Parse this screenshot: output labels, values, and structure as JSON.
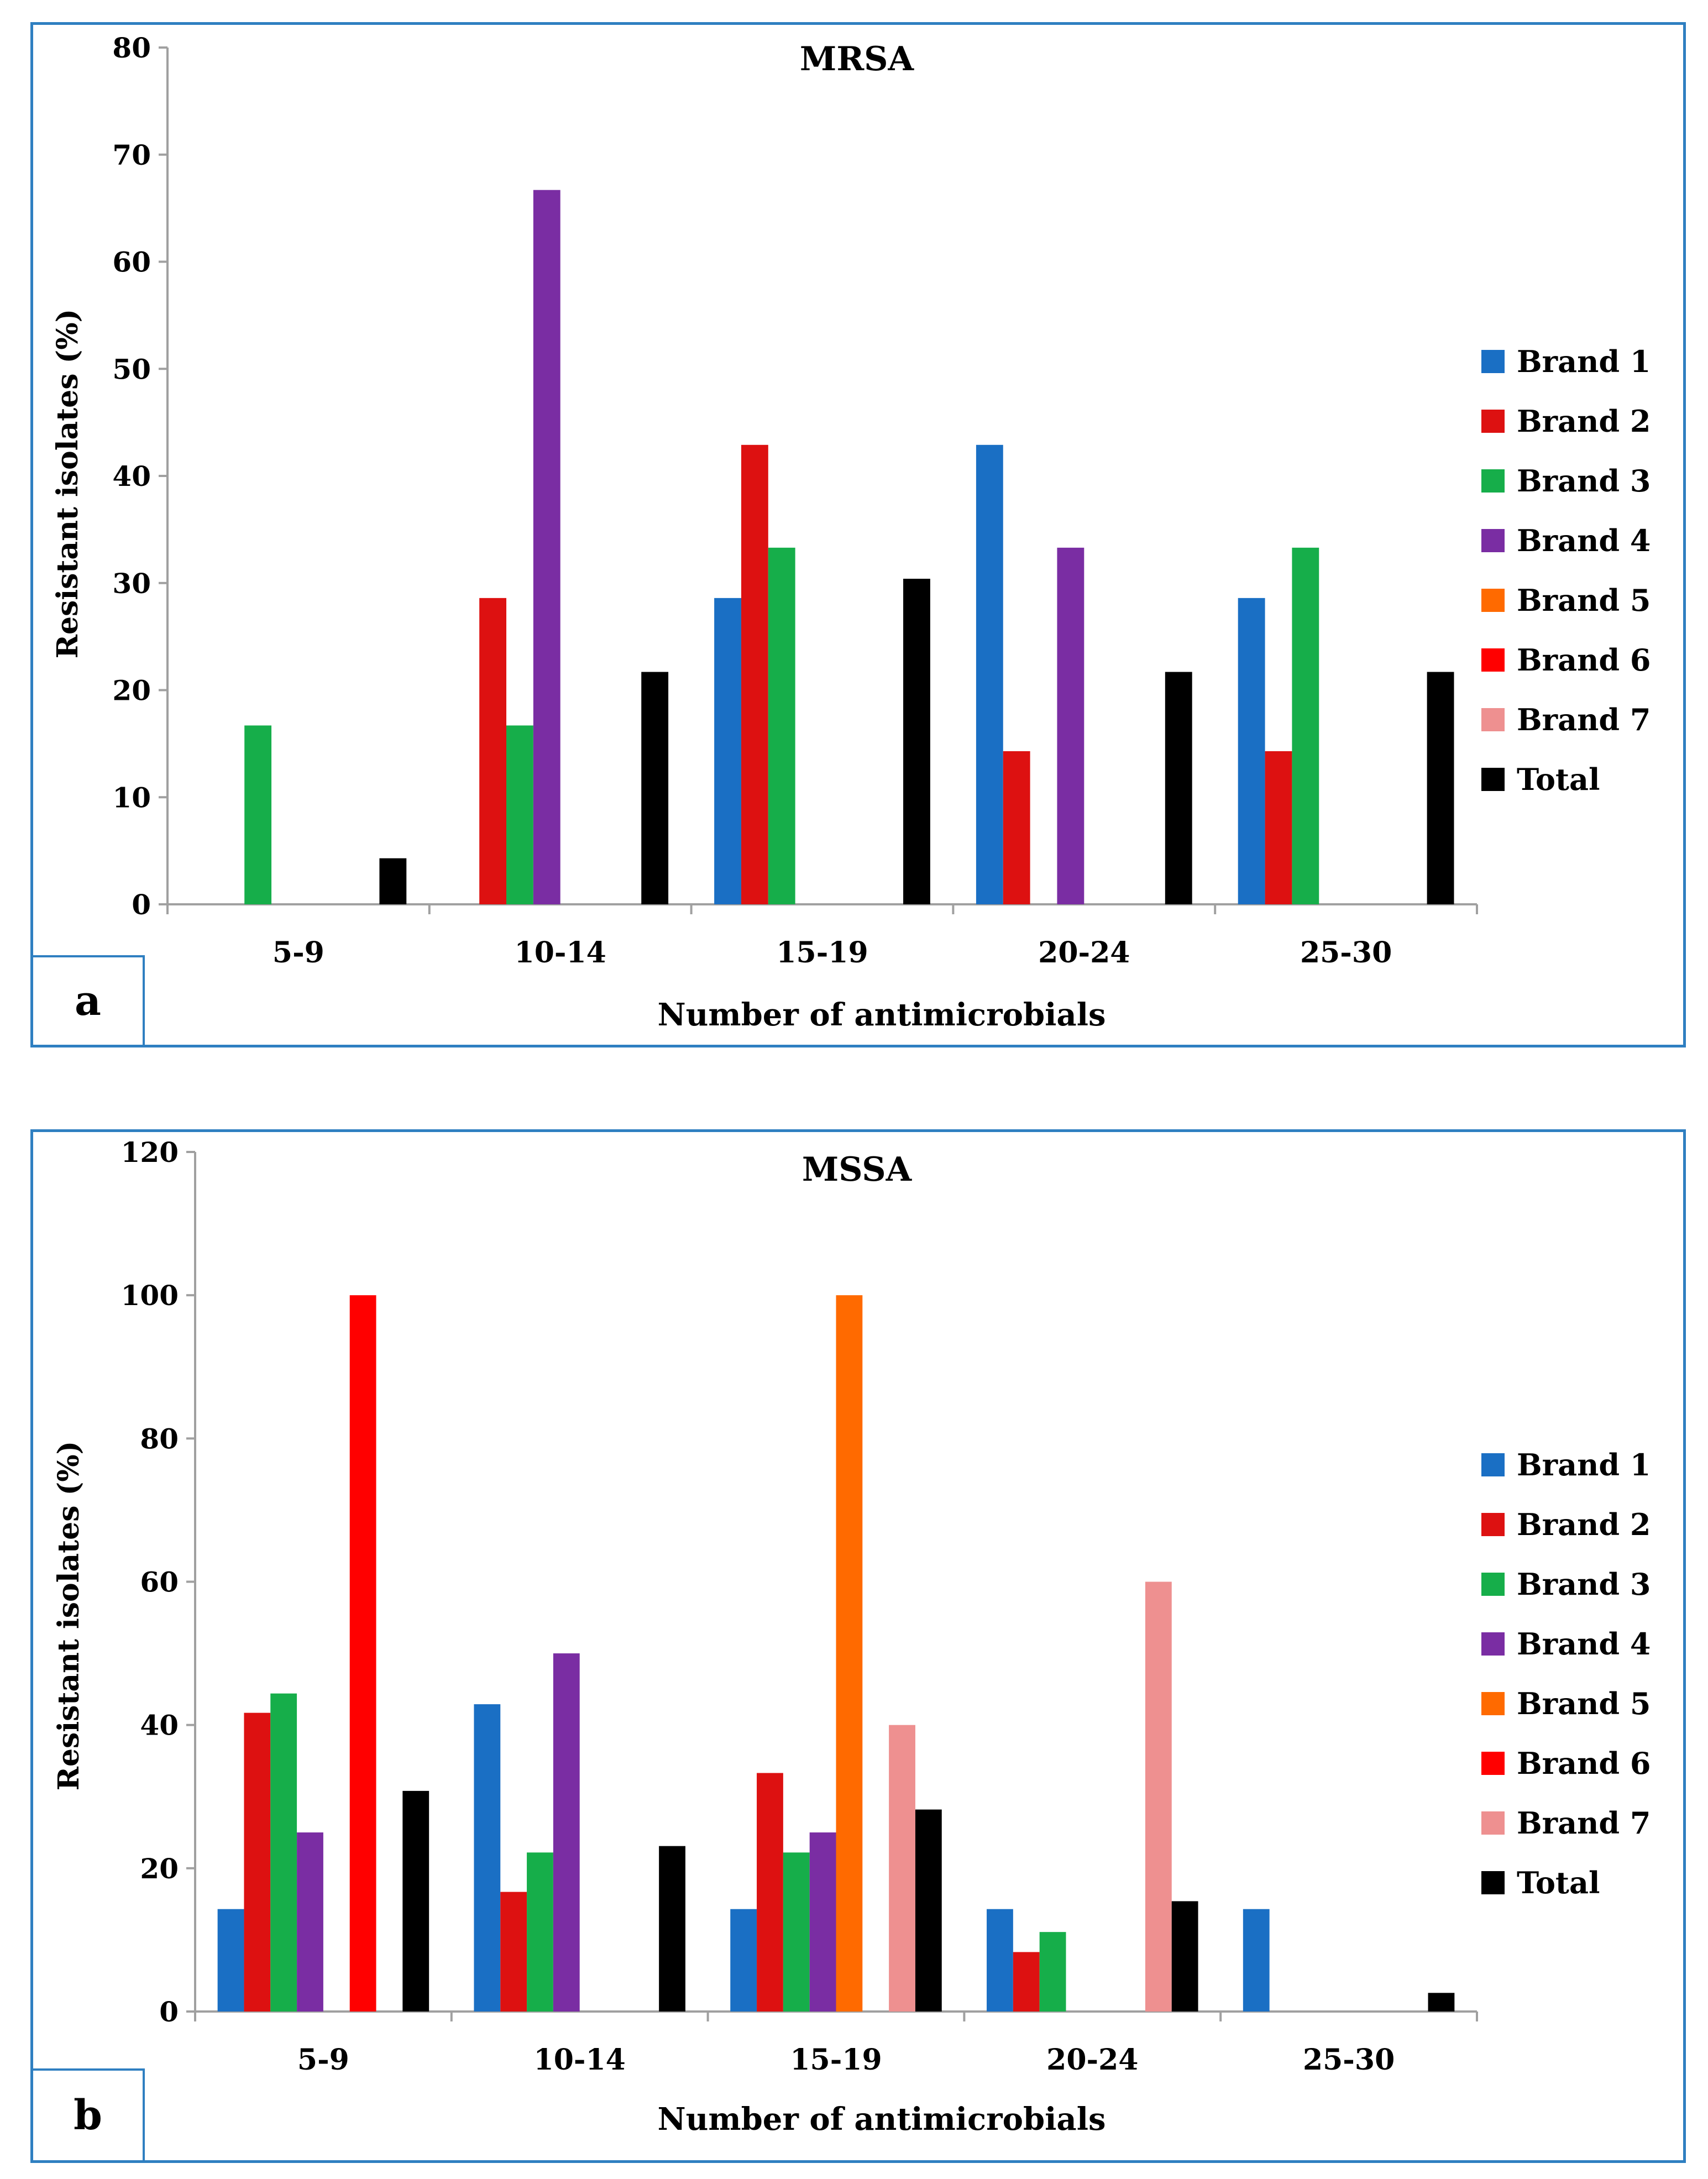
{
  "chart_data": [
    {
      "type": "bar",
      "panel_label": "a",
      "title": "MRSA",
      "xlabel": "Number of antimicrobials",
      "ylabel": "Resistant isolates (%)",
      "ylim": [
        0,
        80
      ],
      "yticks": [
        "0",
        "10",
        "20",
        "30",
        "40",
        "50",
        "60",
        "70",
        "80"
      ],
      "categories": [
        "5-9",
        "10-14",
        "15-19",
        "20-24",
        "25-30"
      ],
      "series": [
        {
          "name": "Brand 1",
          "color": "#1a6fc4",
          "values": [
            0,
            0,
            28.6,
            42.9,
            28.6
          ]
        },
        {
          "name": "Brand 2",
          "color": "#dd1111",
          "values": [
            0,
            28.6,
            42.9,
            14.3,
            14.3
          ]
        },
        {
          "name": "Brand 3",
          "color": "#16ae4a",
          "values": [
            16.7,
            16.7,
            33.3,
            0,
            33.3
          ]
        },
        {
          "name": "Brand 4",
          "color": "#7a2da3",
          "values": [
            0,
            66.7,
            0,
            33.3,
            0
          ]
        },
        {
          "name": "Brand 5",
          "color": "#ff6a00",
          "values": [
            0,
            0,
            0,
            0,
            0
          ]
        },
        {
          "name": "Brand 6",
          "color": "#ff0000",
          "values": [
            0,
            0,
            0,
            0,
            0
          ]
        },
        {
          "name": "Brand 7",
          "color": "#ee9090",
          "values": [
            0,
            0,
            0,
            0,
            0
          ]
        },
        {
          "name": "Total",
          "color": "#000000",
          "values": [
            4.3,
            21.7,
            30.4,
            21.7,
            21.7
          ]
        }
      ]
    },
    {
      "type": "bar",
      "panel_label": "b",
      "title": "MSSA",
      "xlabel": "Number of antimicrobials",
      "ylabel": "Resistant isolates (%)",
      "ylim": [
        0,
        120
      ],
      "yticks": [
        "0",
        "20",
        "40",
        "60",
        "80",
        "100",
        "120"
      ],
      "categories": [
        "5-9",
        "10-14",
        "15-19",
        "20-24",
        "25-30"
      ],
      "series": [
        {
          "name": "Brand 1",
          "color": "#1a6fc4",
          "values": [
            14.3,
            42.9,
            14.3,
            14.3,
            14.3
          ]
        },
        {
          "name": "Brand 2",
          "color": "#dd1111",
          "values": [
            41.7,
            16.7,
            33.3,
            8.3,
            0
          ]
        },
        {
          "name": "Brand 3",
          "color": "#16ae4a",
          "values": [
            44.4,
            22.2,
            22.2,
            11.1,
            0
          ]
        },
        {
          "name": "Brand 4",
          "color": "#7a2da3",
          "values": [
            25,
            50,
            25,
            0,
            0
          ]
        },
        {
          "name": "Brand 5",
          "color": "#ff6a00",
          "values": [
            0,
            0,
            100,
            0,
            0
          ]
        },
        {
          "name": "Brand 6",
          "color": "#ff0000",
          "values": [
            100,
            0,
            0,
            0,
            0
          ]
        },
        {
          "name": "Brand 7",
          "color": "#ee9090",
          "values": [
            0,
            0,
            40,
            60,
            0
          ]
        },
        {
          "name": "Total",
          "color": "#000000",
          "values": [
            30.8,
            23.1,
            28.2,
            15.4,
            2.6
          ]
        }
      ]
    }
  ]
}
